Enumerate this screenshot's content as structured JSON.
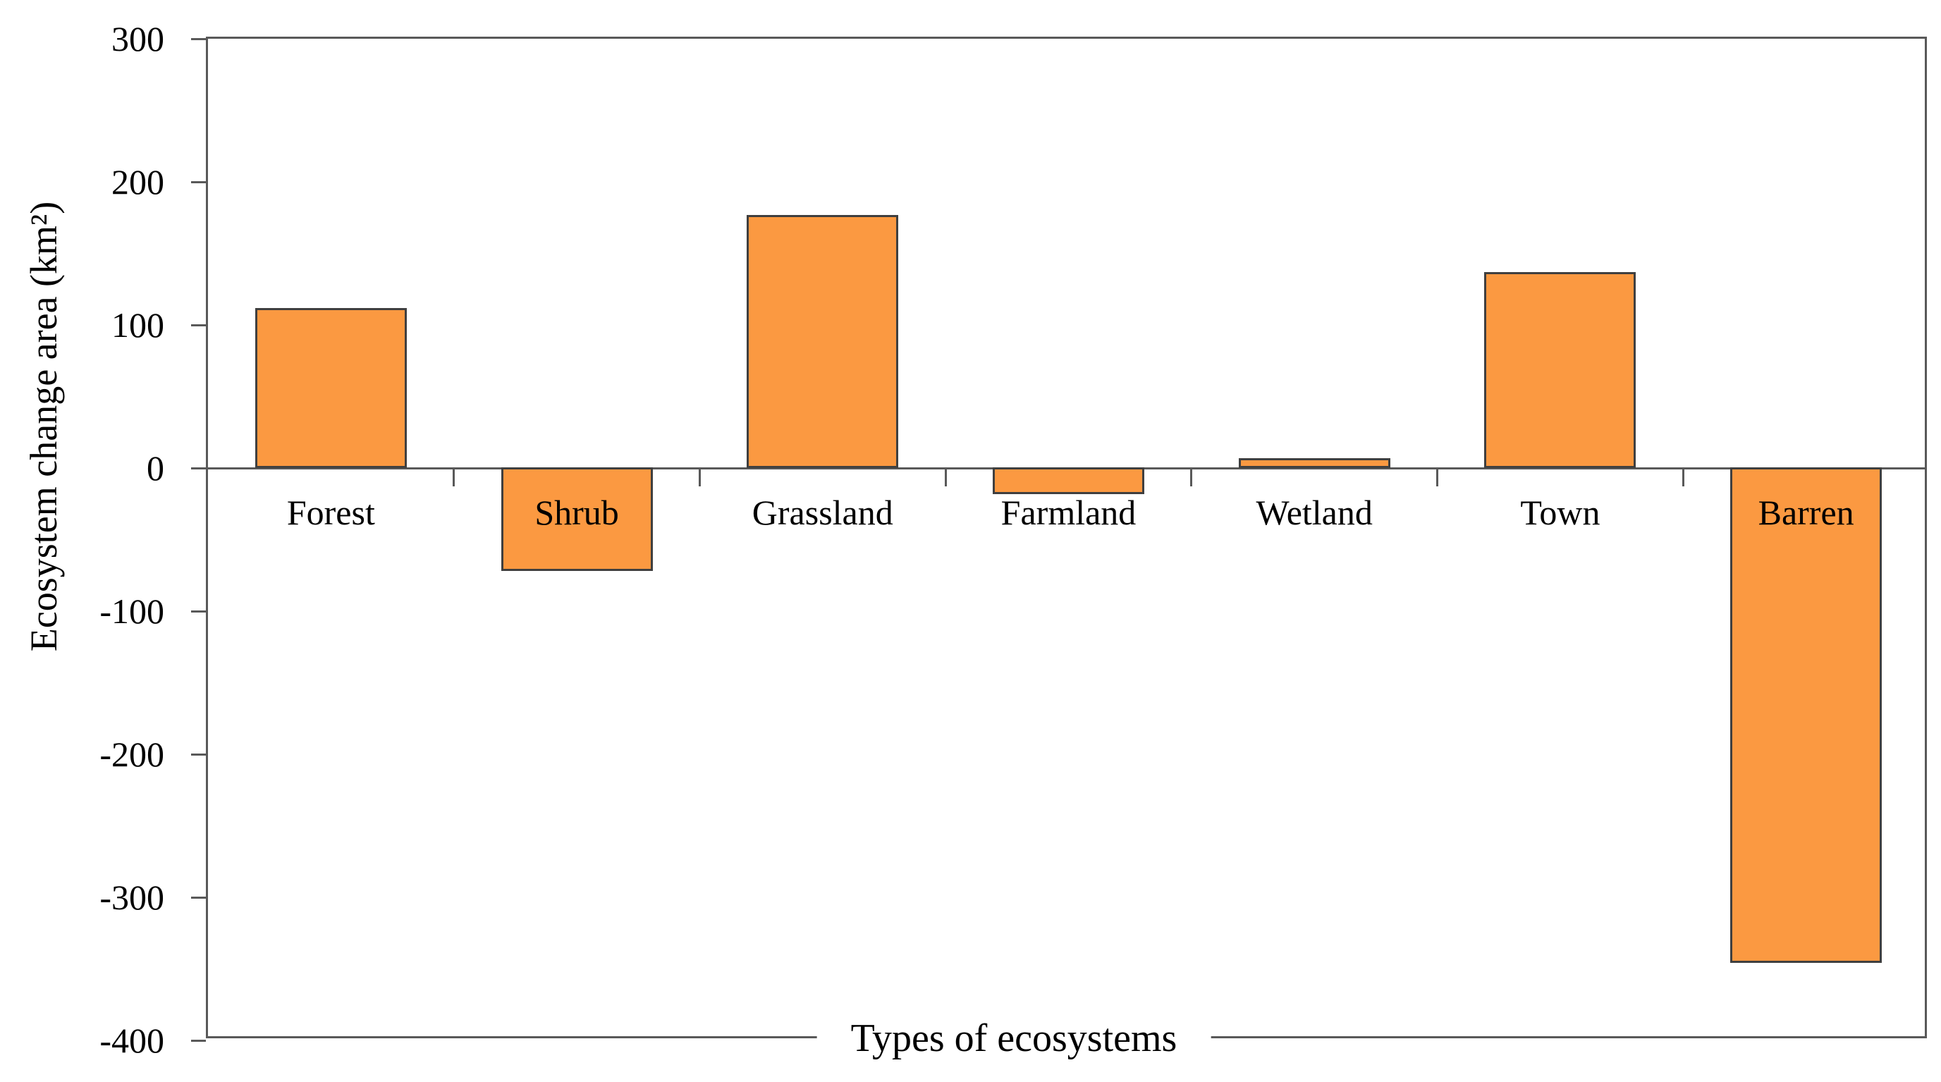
{
  "chart_data": {
    "type": "bar",
    "title": "",
    "xlabel": "Types of ecosystems",
    "ylabel": "Ecosystem change area (km²)",
    "categories": [
      "Forest",
      "Shrub",
      "Grassland",
      "Farmland",
      "Wetland",
      "Town",
      "Barren"
    ],
    "values": [
      112,
      -72,
      177,
      -18,
      7,
      137,
      -346
    ],
    "yticks": [
      300,
      200,
      100,
      0,
      -100,
      -200,
      -300,
      -400
    ],
    "ylim": [
      -400,
      300
    ],
    "grid": false,
    "legend": "none",
    "bar_fill_color": "#FB9941",
    "bar_border_color": "#3F3F3F",
    "axis_line_color": "#595959",
    "text_color": "#000000"
  }
}
